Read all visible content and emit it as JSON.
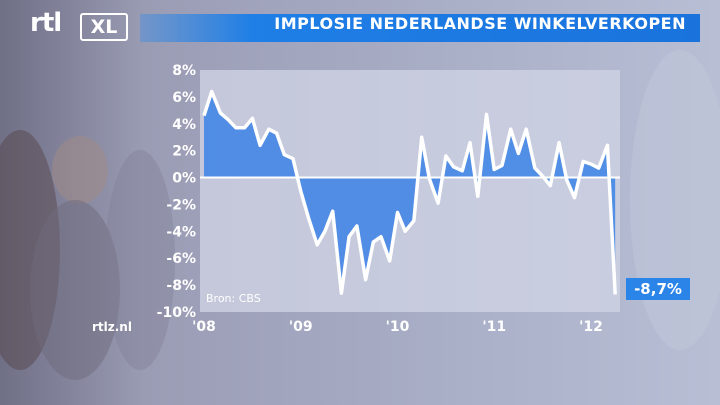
{
  "branding": {
    "logo_rtl": "rtl",
    "logo_xl": "XL",
    "site": "rtlz.nl"
  },
  "title": "IMPLOSIE NEDERLANDSE WINKELVERKOPEN",
  "source_note": "Bron: CBS",
  "end_value_label": "-8,7%",
  "colors": {
    "accent": "#1f7fe6",
    "fill_area": "#3c82e6",
    "line": "#ffffff",
    "plot_bg": "#cfd4e4"
  },
  "chart_data": {
    "type": "area",
    "title": "IMPLOSIE NEDERLANDSE WINKELVERKOPEN",
    "xlabel": "",
    "ylabel": "",
    "x_tick_labels": [
      "'08",
      "'09",
      "'10",
      "'11",
      "'12"
    ],
    "x_ticks": [
      2008,
      2009,
      2010,
      2011,
      2012
    ],
    "y_tick_labels": [
      "8%",
      "6%",
      "4%",
      "2%",
      "0%",
      "-2%",
      "-4%",
      "-6%",
      "-8%",
      "-10%"
    ],
    "y_ticks": [
      8,
      6,
      4,
      2,
      0,
      -2,
      -4,
      -6,
      -8,
      -10
    ],
    "ylim": [
      -10,
      8
    ],
    "xlim": [
      2008,
      2012.3
    ],
    "grid": false,
    "series": [
      {
        "values": [
          [
            2008.0,
            4.6
          ],
          [
            2008.08,
            6.4
          ],
          [
            2008.17,
            4.8
          ],
          [
            2008.25,
            4.3
          ],
          [
            2008.33,
            3.7
          ],
          [
            2008.42,
            3.7
          ],
          [
            2008.5,
            4.4
          ],
          [
            2008.58,
            2.4
          ],
          [
            2008.67,
            3.6
          ],
          [
            2008.75,
            3.3
          ],
          [
            2008.83,
            1.7
          ],
          [
            2008.92,
            1.4
          ],
          [
            2009.0,
            -1.0
          ],
          [
            2009.08,
            -3.0
          ],
          [
            2009.17,
            -5.0
          ],
          [
            2009.25,
            -4.0
          ],
          [
            2009.33,
            -2.5
          ],
          [
            2009.42,
            -8.6
          ],
          [
            2009.5,
            -4.4
          ],
          [
            2009.58,
            -3.6
          ],
          [
            2009.67,
            -7.6
          ],
          [
            2009.75,
            -4.8
          ],
          [
            2009.83,
            -4.4
          ],
          [
            2009.92,
            -6.2
          ],
          [
            2010.0,
            -2.6
          ],
          [
            2010.08,
            -4.0
          ],
          [
            2010.17,
            -3.2
          ],
          [
            2010.25,
            3.0
          ],
          [
            2010.33,
            -0.1
          ],
          [
            2010.42,
            -1.9
          ],
          [
            2010.5,
            1.6
          ],
          [
            2010.58,
            0.8
          ],
          [
            2010.67,
            0.5
          ],
          [
            2010.75,
            2.6
          ],
          [
            2010.83,
            -1.4
          ],
          [
            2010.92,
            4.7
          ],
          [
            2011.0,
            0.6
          ],
          [
            2011.08,
            0.9
          ],
          [
            2011.17,
            3.6
          ],
          [
            2011.25,
            1.8
          ],
          [
            2011.33,
            3.6
          ],
          [
            2011.42,
            0.7
          ],
          [
            2011.5,
            0.1
          ],
          [
            2011.58,
            -0.6
          ],
          [
            2011.67,
            2.6
          ],
          [
            2011.75,
            -0.2
          ],
          [
            2011.83,
            -1.5
          ],
          [
            2011.92,
            1.2
          ],
          [
            2012.0,
            1.0
          ],
          [
            2012.08,
            0.7
          ],
          [
            2012.17,
            2.4
          ],
          [
            2012.25,
            -8.7
          ]
        ]
      }
    ]
  }
}
